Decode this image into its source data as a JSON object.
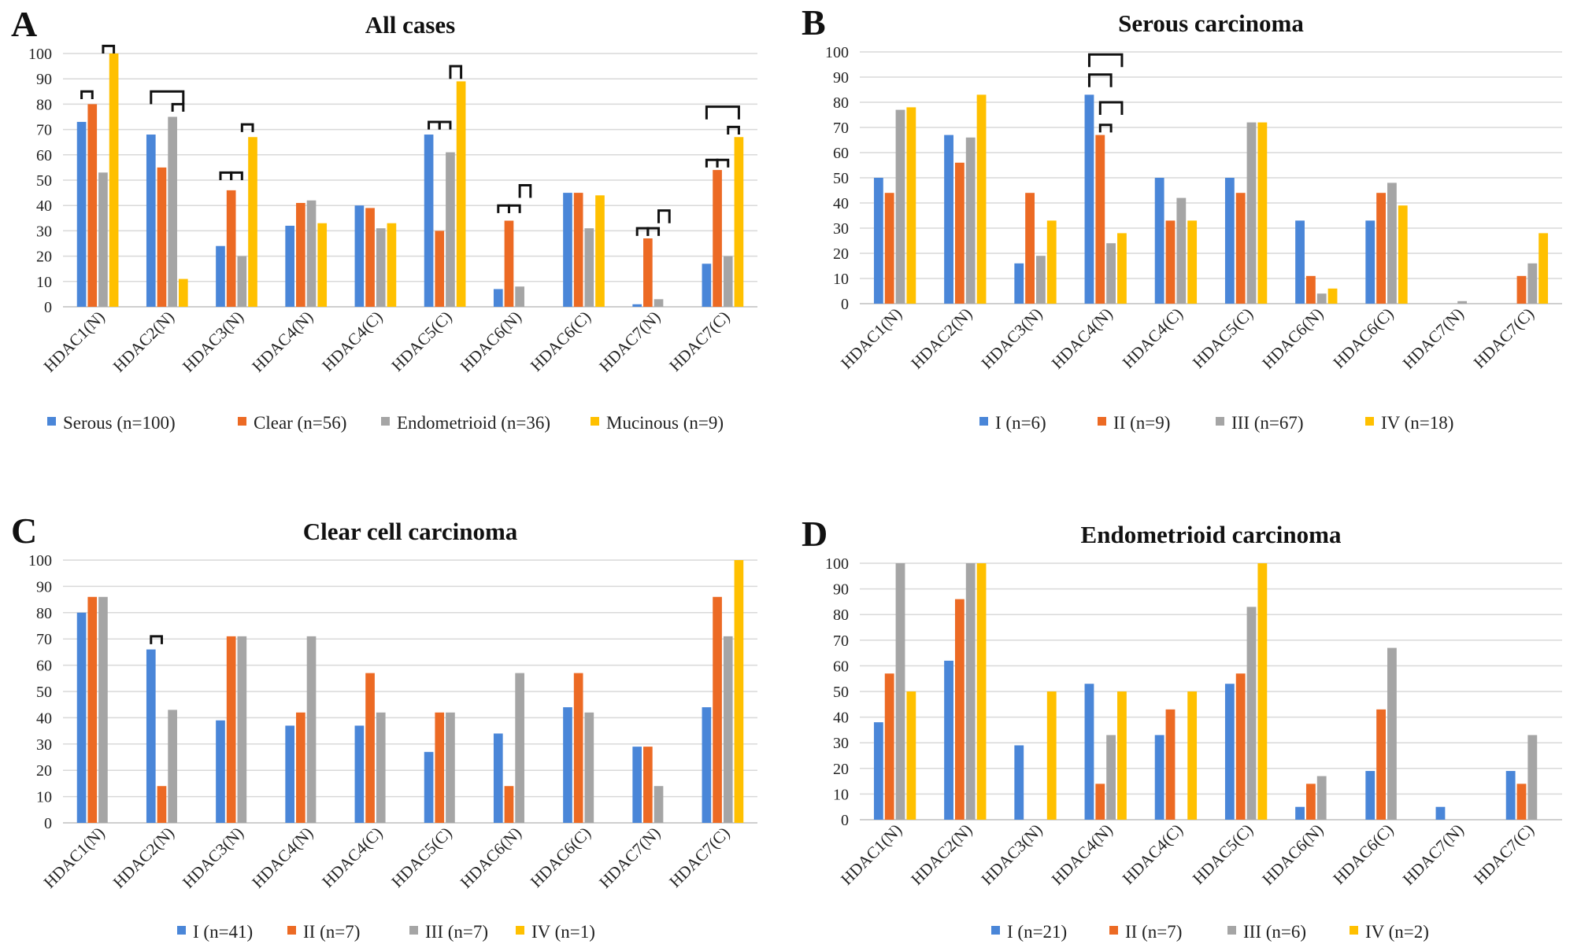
{
  "colors": {
    "s1": "#4a86d8",
    "s2": "#ec6a24",
    "s3": "#a5a5a5",
    "s4": "#ffc000"
  },
  "chart_data": [
    {
      "label": "A",
      "type": "bar",
      "title": "All cases",
      "ylim": [
        0,
        100
      ],
      "yticks": [
        0,
        10,
        20,
        30,
        40,
        50,
        60,
        70,
        80,
        90,
        100
      ],
      "categories": [
        "HDAC1(N)",
        "HDAC2(N)",
        "HDAC3(N)",
        "HDAC4(N)",
        "HDAC4(C)",
        "HDAC5(C)",
        "HDAC6(N)",
        "HDAC6(C)",
        "HDAC7(N)",
        "HDAC7(C)"
      ],
      "series": [
        {
          "name": "Serous (n=100)",
          "values": [
            73,
            68,
            24,
            32,
            40,
            68,
            7,
            45,
            1,
            17
          ]
        },
        {
          "name": "Clear (n=56)",
          "values": [
            80,
            55,
            46,
            41,
            39,
            30,
            34,
            45,
            27,
            54
          ]
        },
        {
          "name": "Endometrioid (n=36)",
          "values": [
            53,
            75,
            20,
            42,
            31,
            61,
            8,
            31,
            3,
            20
          ]
        },
        {
          "name": "Mucinous (n=9)",
          "values": [
            100,
            11,
            67,
            33,
            33,
            89,
            0,
            44,
            0,
            67
          ]
        }
      ],
      "brackets": [
        {
          "cat": 0,
          "a": 0,
          "b": 1,
          "top": 85,
          "h": 3
        },
        {
          "cat": 0,
          "a": 2,
          "b": 3,
          "top": 103,
          "h": 3
        },
        {
          "cat": 1,
          "a": 0,
          "b": 3,
          "top": 85,
          "h": 5
        },
        {
          "cat": 1,
          "a": 2,
          "b": 3,
          "top": 80,
          "h": 3
        },
        {
          "cat": 2,
          "a": 0,
          "b": 1,
          "top": 53,
          "h": 3
        },
        {
          "cat": 2,
          "a": 1,
          "b": 2,
          "top": 53,
          "h": 3
        },
        {
          "cat": 2,
          "a": 2,
          "b": 3,
          "top": 72,
          "h": 3
        },
        {
          "cat": 5,
          "a": 0,
          "b": 1,
          "top": 73,
          "h": 3
        },
        {
          "cat": 5,
          "a": 1,
          "b": 2,
          "top": 73,
          "h": 3
        },
        {
          "cat": 5,
          "a": 2,
          "b": 3,
          "top": 95,
          "h": 5
        },
        {
          "cat": 6,
          "a": 0,
          "b": 1,
          "top": 40,
          "h": 3
        },
        {
          "cat": 6,
          "a": 1,
          "b": 2,
          "top": 40,
          "h": 3
        },
        {
          "cat": 6,
          "a": 2,
          "b": 3,
          "top": 48,
          "h": 5
        },
        {
          "cat": 8,
          "a": 0,
          "b": 1,
          "top": 31,
          "h": 3
        },
        {
          "cat": 8,
          "a": 1,
          "b": 2,
          "top": 31,
          "h": 3
        },
        {
          "cat": 8,
          "a": 2,
          "b": 3,
          "top": 38,
          "h": 5
        },
        {
          "cat": 9,
          "a": 0,
          "b": 1,
          "top": 58,
          "h": 3
        },
        {
          "cat": 9,
          "a": 1,
          "b": 2,
          "top": 58,
          "h": 3
        },
        {
          "cat": 9,
          "a": 0,
          "b": 3,
          "top": 79,
          "h": 5
        },
        {
          "cat": 9,
          "a": 2,
          "b": 3,
          "top": 71,
          "h": 3
        }
      ]
    },
    {
      "label": "B",
      "type": "bar",
      "title": "Serous carcinoma",
      "ylim": [
        0,
        100
      ],
      "yticks": [
        0,
        10,
        20,
        30,
        40,
        50,
        60,
        70,
        80,
        90,
        100
      ],
      "categories": [
        "HDAC1(N)",
        "HDAC2(N)",
        "HDAC3(N)",
        "HDAC4(N)",
        "HDAC4(C)",
        "HDAC5(C)",
        "HDAC6(N)",
        "HDAC6(C)",
        "HDAC7(N)",
        "HDAC7(C)"
      ],
      "series": [
        {
          "name": "I (n=6)",
          "values": [
            50,
            67,
            16,
            83,
            50,
            50,
            33,
            33,
            0,
            0
          ]
        },
        {
          "name": "II (n=9)",
          "values": [
            44,
            56,
            44,
            67,
            33,
            44,
            11,
            44,
            0,
            11
          ]
        },
        {
          "name": "III (n=67)",
          "values": [
            77,
            66,
            19,
            24,
            42,
            72,
            4,
            48,
            1,
            16
          ]
        },
        {
          "name": "IV (n=18)",
          "values": [
            78,
            83,
            33,
            28,
            33,
            72,
            6,
            39,
            0,
            28
          ]
        }
      ],
      "brackets": [
        {
          "cat": 3,
          "a": 0,
          "b": 3,
          "top": 99,
          "h": 5
        },
        {
          "cat": 3,
          "a": 0,
          "b": 2,
          "top": 91,
          "h": 5
        },
        {
          "cat": 3,
          "a": 1,
          "b": 3,
          "top": 80,
          "h": 5
        },
        {
          "cat": 3,
          "a": 1,
          "b": 2,
          "top": 71,
          "h": 3
        }
      ]
    },
    {
      "label": "C",
      "type": "bar",
      "title": "Clear cell carcinoma",
      "ylim": [
        0,
        100
      ],
      "yticks": [
        0,
        10,
        20,
        30,
        40,
        50,
        60,
        70,
        80,
        90,
        100
      ],
      "categories": [
        "HDAC1(N)",
        "HDAC2(N)",
        "HDAC3(N)",
        "HDAC4(N)",
        "HDAC4(C)",
        "HDAC5(C)",
        "HDAC6(N)",
        "HDAC6(C)",
        "HDAC7(N)",
        "HDAC7(C)"
      ],
      "series": [
        {
          "name": "I (n=41)",
          "values": [
            80,
            66,
            39,
            37,
            37,
            27,
            34,
            44,
            29,
            44
          ]
        },
        {
          "name": "II (n=7)",
          "values": [
            86,
            14,
            71,
            42,
            57,
            42,
            14,
            57,
            29,
            86
          ]
        },
        {
          "name": "III (n=7)",
          "values": [
            86,
            43,
            71,
            71,
            42,
            42,
            57,
            42,
            14,
            71
          ]
        },
        {
          "name": "IV (n=1)",
          "values": [
            0,
            0,
            0,
            0,
            0,
            0,
            0,
            0,
            0,
            100
          ]
        }
      ],
      "brackets": [
        {
          "cat": 1,
          "a": 0,
          "b": 1,
          "top": 71,
          "h": 3
        }
      ]
    },
    {
      "label": "D",
      "type": "bar",
      "title": "Endometrioid carcinoma",
      "ylim": [
        0,
        100
      ],
      "yticks": [
        0,
        10,
        20,
        30,
        40,
        50,
        60,
        70,
        80,
        90,
        100
      ],
      "categories": [
        "HDAC1(N)",
        "HDAC2(N)",
        "HDAC3(N)",
        "HDAC4(N)",
        "HDAC4(C)",
        "HDAC5(C)",
        "HDAC6(N)",
        "HDAC6(C)",
        "HDAC7(N)",
        "HDAC7(C)"
      ],
      "series": [
        {
          "name": "I (n=21)",
          "values": [
            38,
            62,
            29,
            53,
            33,
            53,
            5,
            19,
            5,
            19
          ]
        },
        {
          "name": "II (n=7)",
          "values": [
            57,
            86,
            0,
            14,
            43,
            57,
            14,
            43,
            0,
            14
          ]
        },
        {
          "name": "III (n=6)",
          "values": [
            100,
            100,
            0,
            33,
            0,
            83,
            17,
            67,
            0,
            33
          ]
        },
        {
          "name": "IV (n=2)",
          "values": [
            50,
            100,
            50,
            50,
            50,
            100,
            0,
            0,
            0,
            0
          ]
        }
      ],
      "brackets": []
    }
  ]
}
